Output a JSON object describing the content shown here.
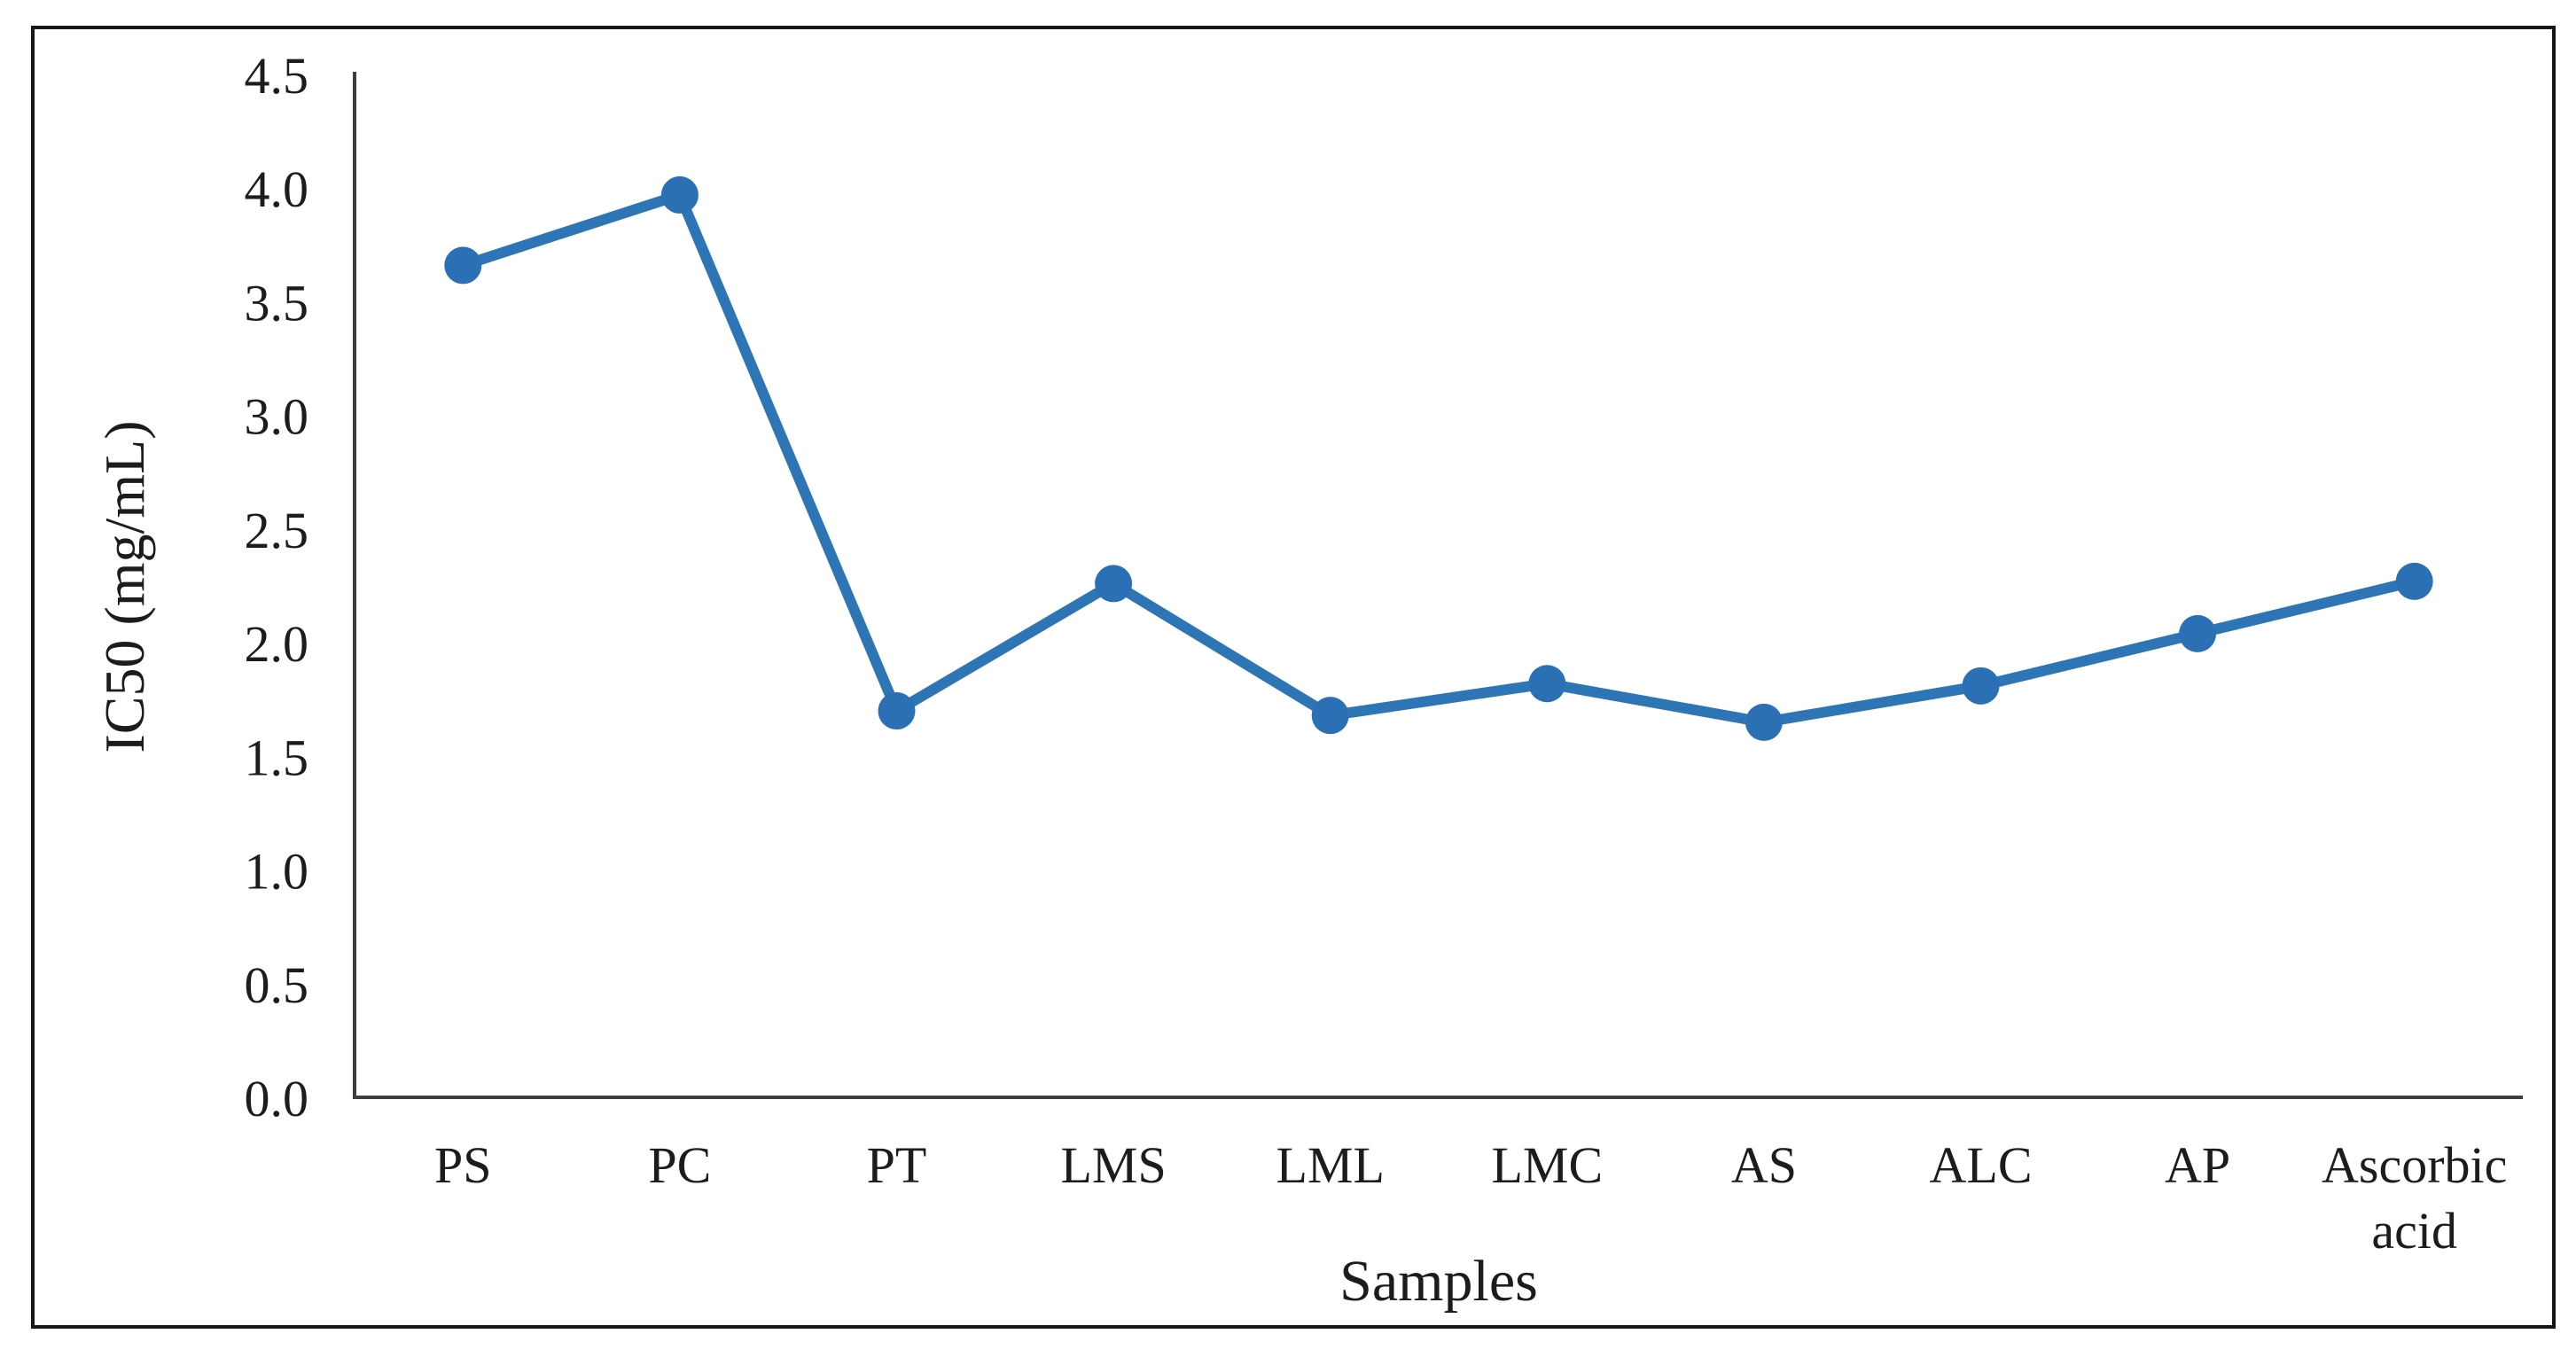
{
  "chart_data": {
    "type": "line",
    "title": "",
    "xlabel": "Samples",
    "ylabel": "IC50 (mg/mL)",
    "categories": [
      "PS",
      "PC",
      "PT",
      "LMS",
      "LML",
      "LMC",
      "AS",
      "ALC",
      "AP",
      "Ascorbic acid"
    ],
    "series": [
      {
        "name": "IC50",
        "values": [
          3.66,
          3.97,
          1.7,
          2.26,
          1.68,
          1.82,
          1.65,
          1.81,
          2.04,
          2.27
        ]
      }
    ],
    "ylim": [
      0,
      4.5
    ],
    "ytick_step": 0.5,
    "ytick_labels": [
      "0.0",
      "0.5",
      "1.0",
      "1.5",
      "2.0",
      "2.5",
      "3.0",
      "3.5",
      "4.0",
      "4.5"
    ],
    "grid": false,
    "legend_position": "none",
    "marker": "circle",
    "colors": {
      "line": "#2E75B6",
      "marker": "#2B6FB4",
      "axis": "#3F3F3F",
      "text": "#1C1C1C",
      "frame": "#161616",
      "background": "#FFFFFF"
    }
  }
}
